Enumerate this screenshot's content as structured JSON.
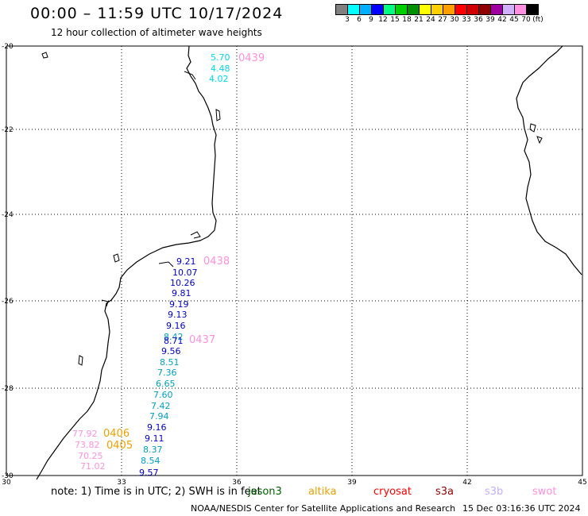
{
  "header": {
    "title": "00:00 – 11:59 UTC 10/17/2024",
    "subtitle": "12 hour collection of altimeter wave heights"
  },
  "legend": {
    "colors": [
      "#808080",
      "#00ffff",
      "#00b0ff",
      "#0000ff",
      "#00ff80",
      "#00d000",
      "#009000",
      "#ffff00",
      "#ffd000",
      "#ffa000",
      "#ff0000",
      "#d00000",
      "#900000",
      "#a000a0",
      "#d0b0ff",
      "#ff90e0",
      "#000000"
    ],
    "labels": [
      "3",
      "6",
      "9",
      "12",
      "15",
      "18",
      "21",
      "24",
      "27",
      "30",
      "33",
      "36",
      "39",
      "42",
      "45",
      "70",
      "(ft)"
    ]
  },
  "axes": {
    "lon_labels": [
      "30",
      "33",
      "36",
      "39",
      "42",
      "45"
    ],
    "lat_labels": [
      "-20",
      "-22",
      "-24",
      "-26",
      "-28",
      "-30"
    ]
  },
  "tracks": {
    "pass_labels": [
      "0439",
      "0438",
      "0437",
      "0406",
      "0405"
    ],
    "track_0439": [
      "5.70",
      "4.48",
      "4.02"
    ],
    "track_0438": [
      "9.21",
      "10.07",
      "10.26",
      "9.81",
      "9.19",
      "9.13",
      "9.16",
      "8.42",
      "8.71",
      "9.56",
      "8.51",
      "7.36",
      "6.65",
      "7.60",
      "7.42",
      "7.94",
      "9.16",
      "9.11",
      "8.37",
      "8.54",
      "9.57"
    ],
    "track_0406": [
      "77.92",
      "73.82",
      "70.25",
      "71.02"
    ]
  },
  "colors": {
    "jason": "#006000",
    "altika": "#f0a000",
    "cryosat": "#ff0000",
    "s3a": "#900000",
    "s3b": "#c0b0ff",
    "swot": "#ff90e0",
    "cyan": "#00d8e8",
    "blue": "#0000cc",
    "teal": "#00a0c0",
    "pink": "#ff90e0"
  },
  "note": {
    "text": "note: 1) Time is in UTC; 2) SWH is in feet",
    "overlay": "jason3",
    "sats": [
      "altika",
      "cryosat",
      "s3a",
      "s3b",
      "swot"
    ]
  },
  "footer": {
    "credit": "NOAA/NESDIS Center for Satellite Applications and Research",
    "timestamp": "15 Dec 03:16:36 UTC 2024"
  }
}
